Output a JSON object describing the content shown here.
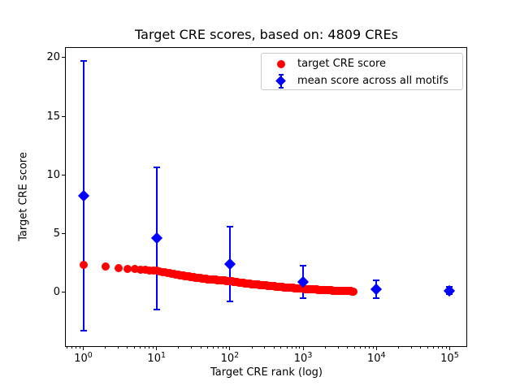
{
  "chart_data": {
    "type": "scatter",
    "title": "Target CRE scores, based on: 4809 CREs",
    "xlabel": "Target CRE rank (log)",
    "ylabel": "Target CRE score",
    "xscale": "log",
    "grid": false,
    "xlog_range": [
      -0.25,
      5.25
    ],
    "ylim": [
      -4.66,
      20.9
    ],
    "yticks": [
      0,
      5,
      10,
      15,
      20
    ],
    "xticks": [
      1,
      10,
      100,
      1000,
      10000,
      100000
    ],
    "xtick_labels": [
      {
        "base": "10",
        "exp": "0"
      },
      {
        "base": "10",
        "exp": "1"
      },
      {
        "base": "10",
        "exp": "2"
      },
      {
        "base": "10",
        "exp": "3"
      },
      {
        "base": "10",
        "exp": "4"
      },
      {
        "base": "10",
        "exp": "5"
      }
    ],
    "legend": {
      "position": "upper right",
      "entries": [
        "target CRE score",
        "mean score across all motifs"
      ]
    },
    "series": [
      {
        "name": "target CRE score",
        "color": "#ff0000",
        "marker": "circle",
        "rank_range": [
          1,
          4809
        ],
        "anchors_log10rank_score": [
          [
            0.0,
            2.34
          ],
          [
            0.301,
            2.2
          ],
          [
            0.477,
            2.07
          ],
          [
            0.602,
            2.0
          ],
          [
            0.699,
            1.96
          ],
          [
            0.778,
            1.93
          ],
          [
            0.845,
            1.9
          ],
          [
            0.903,
            1.88
          ],
          [
            0.954,
            1.86
          ],
          [
            1.0,
            1.82
          ],
          [
            1.15,
            1.65
          ],
          [
            1.3,
            1.48
          ],
          [
            1.5,
            1.28
          ],
          [
            1.7,
            1.12
          ],
          [
            2.0,
            0.95
          ],
          [
            2.25,
            0.73
          ],
          [
            2.5,
            0.57
          ],
          [
            2.75,
            0.42
          ],
          [
            3.0,
            0.3
          ],
          [
            3.2,
            0.22
          ],
          [
            3.4,
            0.15
          ],
          [
            3.55,
            0.11
          ],
          [
            3.682,
            0.08
          ]
        ]
      },
      {
        "name": "mean score across all motifs",
        "color": "#0000ff",
        "marker": "diamond",
        "points": [
          {
            "rank": 1,
            "mean": 8.2,
            "err": 11.5
          },
          {
            "rank": 10,
            "mean": 4.6,
            "err": 6.05
          },
          {
            "rank": 100,
            "mean": 2.4,
            "err": 3.2
          },
          {
            "rank": 1000,
            "mean": 0.9,
            "err": 1.4
          },
          {
            "rank": 10000,
            "mean": 0.25,
            "err": 0.75
          },
          {
            "rank": 100000,
            "mean": 0.15,
            "err": 0.3
          }
        ]
      }
    ]
  }
}
